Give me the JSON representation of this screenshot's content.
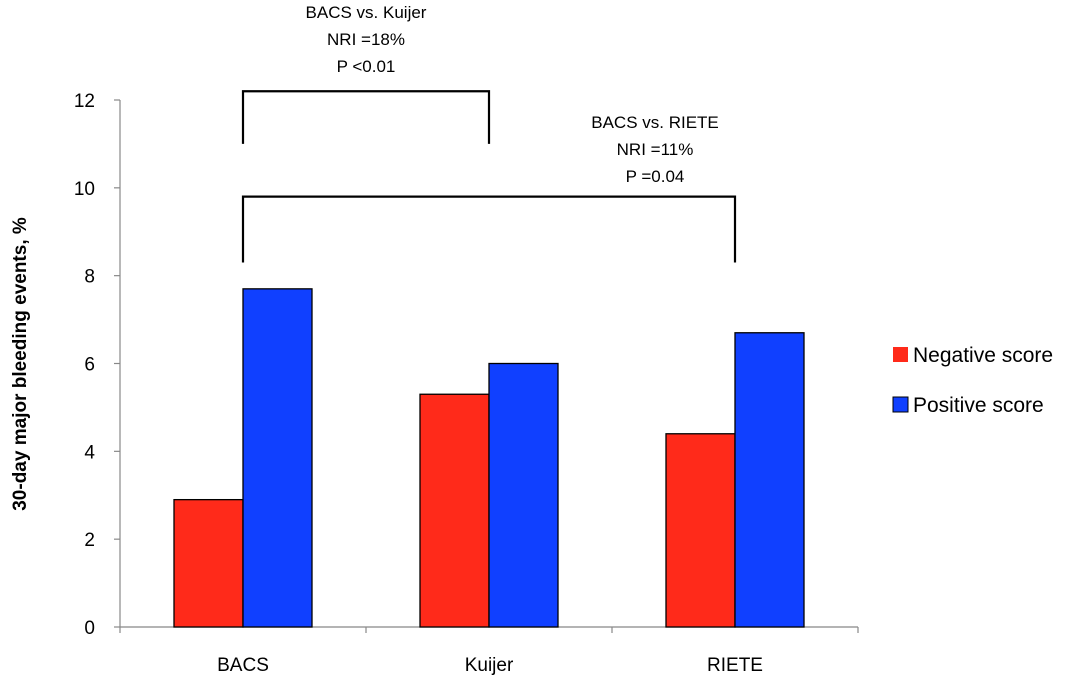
{
  "chart_data": {
    "type": "bar",
    "title": "",
    "xlabel": "",
    "ylabel": "30-day major bleeding events, %",
    "ylim": [
      0,
      12
    ],
    "yticks": [
      "0",
      "2",
      "4",
      "6",
      "8",
      "10",
      "12"
    ],
    "grid": false,
    "legend_position": "right",
    "categories": [
      "BACS",
      "Kuijer",
      "RIETE"
    ],
    "series": [
      {
        "name": "Negative score",
        "color": "#ff2a1a",
        "values": [
          2.9,
          5.3,
          4.4
        ]
      },
      {
        "name": "Positive score",
        "color": "#1040ff",
        "values": [
          7.7,
          6.0,
          6.7
        ]
      }
    ],
    "annotations": [
      {
        "lines": [
          "BACS vs. Kuijer",
          "NRI =18%",
          "P <0.01"
        ],
        "from": "BACS",
        "to": "Kuijer"
      },
      {
        "lines": [
          "BACS vs. RIETE",
          "NRI =11%",
          "P =0.04"
        ],
        "from": "BACS",
        "to": "RIETE"
      }
    ]
  }
}
